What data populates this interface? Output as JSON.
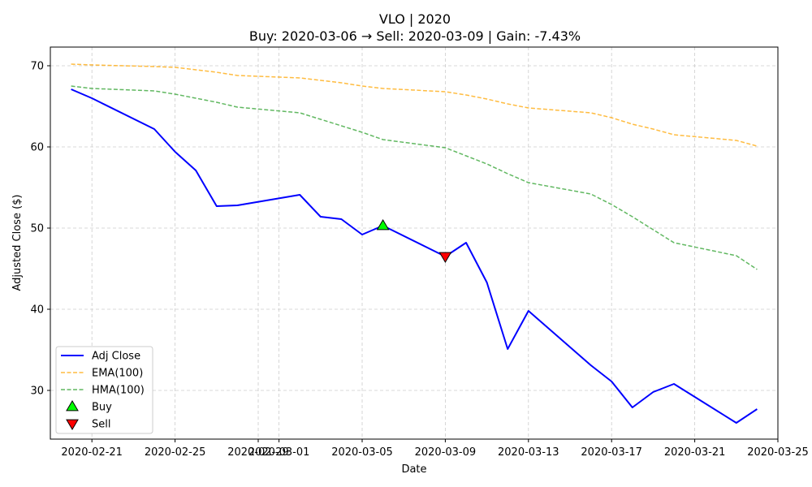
{
  "chart_data": {
    "type": "line",
    "title": "VLO | 2020",
    "subtitle": "Buy: 2020-03-06  →  Sell: 2020-03-09  |  Gain: -7.43%",
    "xlabel": "Date",
    "ylabel": "Adjusted Close ($)",
    "xlim": [
      "2020-02-19",
      "2020-03-25"
    ],
    "ylim": [
      24,
      72.3
    ],
    "grid": true,
    "legend_position": "lower-left",
    "x_ticks": [
      "2020-02-21",
      "2020-02-25",
      "2020-02-29",
      "2020-03-01",
      "2020-03-05",
      "2020-03-09",
      "2020-03-13",
      "2020-03-17",
      "2020-03-21",
      "2020-03-25"
    ],
    "y_ticks": [
      30,
      40,
      50,
      60,
      70
    ],
    "series": [
      {
        "name": "Adj Close",
        "color": "#0000ff",
        "style": "solid",
        "points": [
          [
            "2020-02-20",
            67.1
          ],
          [
            "2020-02-21",
            66.0
          ],
          [
            "2020-02-24",
            62.2
          ],
          [
            "2020-02-25",
            59.4
          ],
          [
            "2020-02-26",
            57.1
          ],
          [
            "2020-02-27",
            52.7
          ],
          [
            "2020-02-28",
            52.8
          ],
          [
            "2020-03-02",
            54.1
          ],
          [
            "2020-03-03",
            51.4
          ],
          [
            "2020-03-04",
            51.1
          ],
          [
            "2020-03-05",
            49.2
          ],
          [
            "2020-03-06",
            50.3
          ],
          [
            "2020-03-09",
            46.5
          ],
          [
            "2020-03-10",
            48.2
          ],
          [
            "2020-03-11",
            43.3
          ],
          [
            "2020-03-12",
            35.1
          ],
          [
            "2020-03-13",
            39.8
          ],
          [
            "2020-03-16",
            33.1
          ],
          [
            "2020-03-17",
            31.1
          ],
          [
            "2020-03-18",
            27.9
          ],
          [
            "2020-03-19",
            29.8
          ],
          [
            "2020-03-20",
            30.8
          ],
          [
            "2020-03-23",
            26.0
          ],
          [
            "2020-03-24",
            27.7
          ]
        ]
      },
      {
        "name": "EMA(100)",
        "color": "#ffa500",
        "style": "dashed",
        "points": [
          [
            "2020-02-20",
            70.2
          ],
          [
            "2020-02-21",
            70.1
          ],
          [
            "2020-02-24",
            69.9
          ],
          [
            "2020-02-25",
            69.8
          ],
          [
            "2020-02-26",
            69.5
          ],
          [
            "2020-02-27",
            69.2
          ],
          [
            "2020-02-28",
            68.8
          ],
          [
            "2020-03-02",
            68.5
          ],
          [
            "2020-03-03",
            68.2
          ],
          [
            "2020-03-04",
            67.9
          ],
          [
            "2020-03-05",
            67.5
          ],
          [
            "2020-03-06",
            67.2
          ],
          [
            "2020-03-09",
            66.8
          ],
          [
            "2020-03-10",
            66.4
          ],
          [
            "2020-03-11",
            65.9
          ],
          [
            "2020-03-12",
            65.3
          ],
          [
            "2020-03-13",
            64.8
          ],
          [
            "2020-03-16",
            64.2
          ],
          [
            "2020-03-17",
            63.6
          ],
          [
            "2020-03-18",
            62.8
          ],
          [
            "2020-03-19",
            62.2
          ],
          [
            "2020-03-20",
            61.5
          ],
          [
            "2020-03-23",
            60.8
          ],
          [
            "2020-03-24",
            60.1
          ]
        ]
      },
      {
        "name": "HMA(100)",
        "color": "#2ca02c",
        "style": "dashed",
        "points": [
          [
            "2020-02-20",
            67.5
          ],
          [
            "2020-02-21",
            67.2
          ],
          [
            "2020-02-24",
            66.9
          ],
          [
            "2020-02-25",
            66.5
          ],
          [
            "2020-02-26",
            66.0
          ],
          [
            "2020-02-27",
            65.5
          ],
          [
            "2020-02-28",
            64.9
          ],
          [
            "2020-03-02",
            64.2
          ],
          [
            "2020-03-03",
            63.4
          ],
          [
            "2020-03-04",
            62.6
          ],
          [
            "2020-03-05",
            61.8
          ],
          [
            "2020-03-06",
            60.9
          ],
          [
            "2020-03-09",
            59.9
          ],
          [
            "2020-03-10",
            58.9
          ],
          [
            "2020-03-11",
            57.9
          ],
          [
            "2020-03-12",
            56.7
          ],
          [
            "2020-03-13",
            55.6
          ],
          [
            "2020-03-16",
            54.2
          ],
          [
            "2020-03-17",
            52.9
          ],
          [
            "2020-03-18",
            51.4
          ],
          [
            "2020-03-19",
            49.8
          ],
          [
            "2020-03-20",
            48.2
          ],
          [
            "2020-03-23",
            46.6
          ],
          [
            "2020-03-24",
            44.9
          ]
        ]
      }
    ],
    "markers": [
      {
        "name": "Buy",
        "date": "2020-03-06",
        "value": 50.3,
        "shape": "triangle-up",
        "color": "#00ff00"
      },
      {
        "name": "Sell",
        "date": "2020-03-09",
        "value": 46.5,
        "shape": "triangle-down",
        "color": "#ff0000"
      }
    ]
  }
}
